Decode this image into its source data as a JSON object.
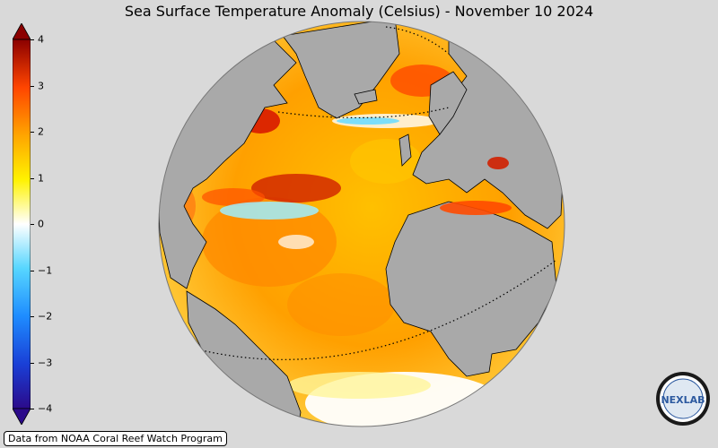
{
  "title": "Sea Surface Temperature Anomaly (Celsius) - November 10 2024",
  "colorbar": {
    "min": -4,
    "max": 4,
    "ticks": [
      {
        "value": 4,
        "label": "4"
      },
      {
        "value": 3,
        "label": "3"
      },
      {
        "value": 2,
        "label": "2"
      },
      {
        "value": 1,
        "label": "1"
      },
      {
        "value": 0,
        "label": "0"
      },
      {
        "value": -1,
        "label": "−1"
      },
      {
        "value": -2,
        "label": "−2"
      },
      {
        "value": -3,
        "label": "−3"
      },
      {
        "value": -4,
        "label": "−4"
      }
    ],
    "colors": [
      "#2b0a8a",
      "#1a3fd6",
      "#1e8cff",
      "#57d6ff",
      "#ffffff",
      "#fff200",
      "#ffa500",
      "#ff4500",
      "#8b0000"
    ]
  },
  "credit": "Data from NOAA Coral Reef Watch Program",
  "logo_text": "NEXLAB",
  "colors": {
    "background": "#d9d9d9",
    "land": "#a9a9a9",
    "ocean_warm": "#ffb000",
    "ocean_hot": "#ff5a00",
    "ocean_neutral": "#ffffff",
    "ocean_cool": "#7fe7ff"
  }
}
